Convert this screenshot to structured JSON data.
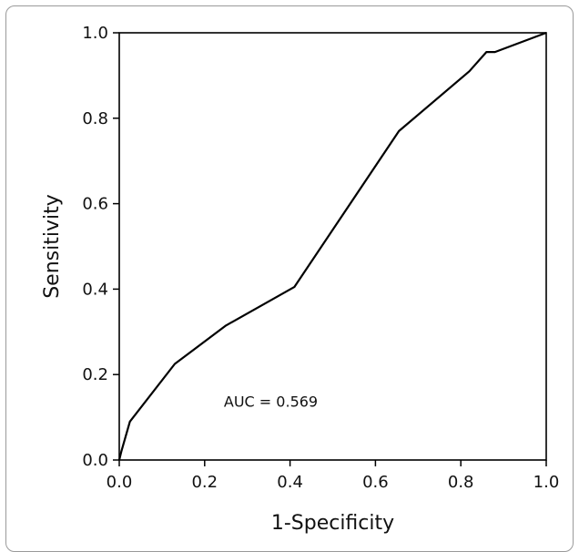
{
  "chart_data": {
    "type": "line",
    "xlabel": "1-Specificity",
    "ylabel": "Sensitivity",
    "xlim": [
      0,
      1
    ],
    "ylim": [
      0,
      1
    ],
    "xticks": [
      "0.0",
      "0.2",
      "0.4",
      "0.6",
      "0.8",
      "1.0"
    ],
    "yticks": [
      "0.0",
      "0.2",
      "0.4",
      "0.6",
      "0.8",
      "1.0"
    ],
    "annotation": "AUC = 0.569",
    "grid": false,
    "series": [
      {
        "x": [
          0.0,
          0.005,
          0.025,
          0.13,
          0.25,
          0.41,
          0.655,
          0.82,
          0.86,
          0.88,
          1.0
        ],
        "y": [
          0.0,
          0.02,
          0.09,
          0.225,
          0.315,
          0.405,
          0.77,
          0.91,
          0.955,
          0.955,
          1.0
        ]
      }
    ]
  }
}
